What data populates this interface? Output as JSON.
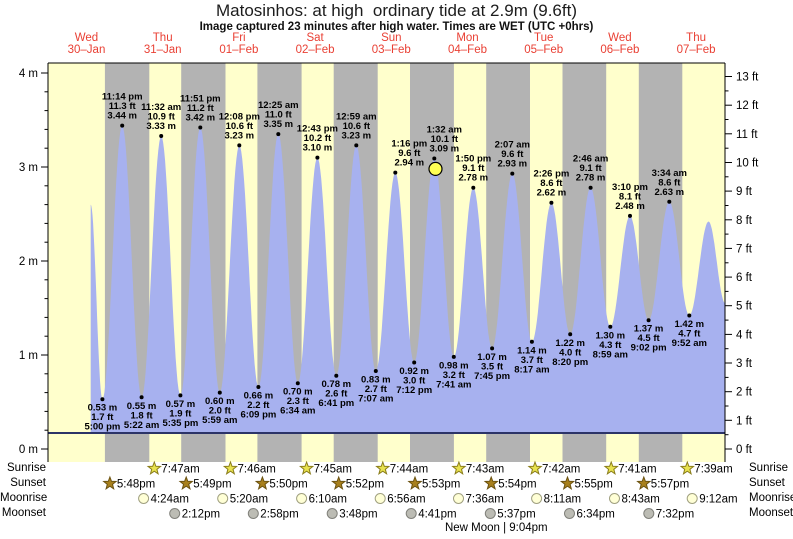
{
  "title": "Matosinhos: at high  ordinary tide at 2.9m (9.6ft)",
  "subtitle": "Image captured 23 minutes after high water. Times are WET (UTC +0hrs)",
  "colors": {
    "page_bg": "#ffffff",
    "day_band": "#ffffcc",
    "night_band": "#b3b3b3",
    "tide_fill": "#a7b1ef",
    "tide_base_line": "#2c3468",
    "axis": "#000000",
    "day_label_red": "#e93f33",
    "tide_label": "#000000",
    "current_marker_fill": "#ffff55",
    "current_marker_stroke": "#000000",
    "sunrise_star_fill": "#e8e24f",
    "sunrise_star_stroke": "#8a7d1a",
    "sunset_star_fill": "#a8801c",
    "sunset_star_stroke": "#6b5211",
    "moonrise_fill": "#ffffd6",
    "moonrise_stroke": "#a0a080",
    "moonset_fill": "#bcbcb4",
    "moonset_stroke": "#80807a"
  },
  "days": [
    {
      "name": "Wed",
      "date": "30–Jan"
    },
    {
      "name": "Thu",
      "date": "31–Jan"
    },
    {
      "name": "Fri",
      "date": "01–Feb"
    },
    {
      "name": "Sat",
      "date": "02–Feb"
    },
    {
      "name": "Sun",
      "date": "03–Feb"
    },
    {
      "name": "Mon",
      "date": "04–Feb"
    },
    {
      "name": "Tue",
      "date": "05–Feb"
    },
    {
      "name": "Wed",
      "date": "06–Feb"
    },
    {
      "name": "Thu",
      "date": "07–Feb"
    }
  ],
  "axes": {
    "left_ticks": [
      "0 m",
      "1 m",
      "2 m",
      "3 m",
      "4 m"
    ],
    "right_ticks": [
      "0 ft",
      "1 ft",
      "2 ft",
      "3 ft",
      "4 ft",
      "5 ft",
      "6 ft",
      "7 ft",
      "8 ft",
      "9 ft",
      "10 ft",
      "11 ft",
      "12 ft",
      "13 ft"
    ]
  },
  "footer": {
    "sunrise_label": "Sunrise",
    "sunset_label": "Sunset",
    "moonrise_label": "Moonrise",
    "moonset_label": "Moonset"
  },
  "chart_data": {
    "type": "area",
    "ylabel_left": "meters",
    "ylabel_right": "feet",
    "ylim_m": [
      0,
      4.1
    ],
    "ylim_ft": [
      0,
      13.5
    ],
    "x_range": "Wed 30-Jan 00:00 to Thu 07-Feb ~21:00 (9 day columns, night shaded)",
    "tide_events": [
      {
        "d": 0,
        "time": "1:20 pm",
        "m": 2.6,
        "kind": "start"
      },
      {
        "d": 0,
        "time": "5:00 pm",
        "m": 0.53,
        "kind": "low",
        "lines": [
          "0.53 m",
          "1.7 ft",
          "5:00 pm"
        ]
      },
      {
        "d": 0,
        "time": "11:14 pm",
        "m": 3.44,
        "kind": "high",
        "lines": [
          "11:14 pm",
          "11.3 ft",
          "3.44 m"
        ]
      },
      {
        "d": 1,
        "time": "5:22 am",
        "m": 0.55,
        "kind": "low",
        "lines": [
          "0.55 m",
          "1.8 ft",
          "5:22 am"
        ]
      },
      {
        "d": 1,
        "time": "11:32 am",
        "m": 3.33,
        "kind": "high",
        "lines": [
          "11:32 am",
          "10.9 ft",
          "3.33 m"
        ]
      },
      {
        "d": 1,
        "time": "5:35 pm",
        "m": 0.57,
        "kind": "low",
        "lines": [
          "0.57 m",
          "1.9 ft",
          "5:35 pm"
        ]
      },
      {
        "d": 1,
        "time": "11:51 pm",
        "m": 3.42,
        "kind": "high",
        "lines": [
          "11:51 pm",
          "11.2 ft",
          "3.42 m"
        ]
      },
      {
        "d": 2,
        "time": "5:59 am",
        "m": 0.6,
        "kind": "low",
        "lines": [
          "0.60 m",
          "2.0 ft",
          "5:59 am"
        ]
      },
      {
        "d": 2,
        "time": "12:08 pm",
        "m": 3.23,
        "kind": "high",
        "lines": [
          "12:08 pm",
          "10.6 ft",
          "3.23 m"
        ]
      },
      {
        "d": 2,
        "time": "6:09 pm",
        "m": 0.66,
        "kind": "low",
        "lines": [
          "0.66 m",
          "2.2 ft",
          "6:09 pm"
        ]
      },
      {
        "d": 3,
        "time": "12:25 am",
        "m": 3.35,
        "kind": "high",
        "lines": [
          "12:25 am",
          "11.0 ft",
          "3.35 m"
        ]
      },
      {
        "d": 3,
        "time": "6:34 am",
        "m": 0.7,
        "kind": "low",
        "lines": [
          "0.70 m",
          "2.3 ft",
          "6:34 am"
        ]
      },
      {
        "d": 3,
        "time": "12:43 pm",
        "m": 3.1,
        "kind": "high",
        "lines": [
          "12:43 pm",
          "10.2 ft",
          "3.10 m"
        ]
      },
      {
        "d": 3,
        "time": "6:41 pm",
        "m": 0.78,
        "kind": "low",
        "lines": [
          "0.78 m",
          "2.6 ft",
          "6:41 pm"
        ]
      },
      {
        "d": 4,
        "time": "12:59 am",
        "m": 3.23,
        "kind": "high",
        "lines": [
          "12:59 am",
          "10.6 ft",
          "3.23 m"
        ]
      },
      {
        "d": 4,
        "time": "7:07 am",
        "m": 0.83,
        "kind": "low",
        "lines": [
          "0.83 m",
          "2.7 ft",
          "7:07 am"
        ]
      },
      {
        "d": 4,
        "time": "1:16 pm",
        "m": 2.94,
        "kind": "high",
        "lines": [
          "1:16 pm",
          "9.6 ft",
          "2.94 m"
        ],
        "ldx": 14
      },
      {
        "d": 4,
        "time": "7:12 pm",
        "m": 0.92,
        "kind": "low",
        "lines": [
          "0.92 m",
          "3.0 ft",
          "7:12 pm"
        ]
      },
      {
        "d": 5,
        "time": "1:32 am",
        "m": 3.09,
        "kind": "high",
        "lines": [
          "1:32 am",
          "10.1 ft",
          "3.09 m"
        ],
        "ldx": 10
      },
      {
        "d": 5,
        "time": "7:41 am",
        "m": 0.98,
        "kind": "low",
        "lines": [
          "0.98 m",
          "3.2 ft",
          "7:41 am"
        ]
      },
      {
        "d": 5,
        "time": "1:50 pm",
        "m": 2.78,
        "kind": "high",
        "lines": [
          "1:50 pm",
          "9.1 ft",
          "2.78 m"
        ]
      },
      {
        "d": 5,
        "time": "7:45 pm",
        "m": 1.07,
        "kind": "low",
        "lines": [
          "1.07 m",
          "3.5 ft",
          "7:45 pm"
        ]
      },
      {
        "d": 6,
        "time": "2:07 am",
        "m": 2.93,
        "kind": "high",
        "lines": [
          "2:07 am",
          "9.6 ft",
          "2.93 m"
        ]
      },
      {
        "d": 6,
        "time": "8:17 am",
        "m": 1.14,
        "kind": "low",
        "lines": [
          "1.14 m",
          "3.7 ft",
          "8:17 am"
        ]
      },
      {
        "d": 6,
        "time": "2:26 pm",
        "m": 2.62,
        "kind": "high",
        "lines": [
          "2:26 pm",
          "8.6 ft",
          "2.62 m"
        ]
      },
      {
        "d": 6,
        "time": "8:20 pm",
        "m": 1.22,
        "kind": "low",
        "lines": [
          "1.22 m",
          "4.0 ft",
          "8:20 pm"
        ]
      },
      {
        "d": 7,
        "time": "2:46 am",
        "m": 2.78,
        "kind": "high",
        "lines": [
          "2:46 am",
          "9.1 ft",
          "2.78 m"
        ]
      },
      {
        "d": 7,
        "time": "8:59 am",
        "m": 1.3,
        "kind": "low",
        "lines": [
          "1.30 m",
          "4.3 ft",
          "8:59 am"
        ]
      },
      {
        "d": 7,
        "time": "3:10 pm",
        "m": 2.48,
        "kind": "high",
        "lines": [
          "3:10 pm",
          "8.1 ft",
          "2.48 m"
        ]
      },
      {
        "d": 7,
        "time": "9:02 pm",
        "m": 1.37,
        "kind": "low",
        "lines": [
          "1.37 m",
          "4.5 ft",
          "9:02 pm"
        ]
      },
      {
        "d": 8,
        "time": "3:34 am",
        "m": 2.63,
        "kind": "high",
        "lines": [
          "3:34 am",
          "8.6 ft",
          "2.63 m"
        ]
      },
      {
        "d": 8,
        "time": "9:52 am",
        "m": 1.42,
        "kind": "low",
        "lines": [
          "1.42 m",
          "4.7 ft",
          "9:52 am"
        ]
      },
      {
        "d": 8,
        "time": "3:55 pm",
        "m": 2.42,
        "kind": "peak-unlabeled"
      },
      {
        "d": 8,
        "time": "9:10 pm",
        "m": 1.55,
        "kind": "end"
      }
    ],
    "current_marker": {
      "d": 5,
      "time": "1:55 am",
      "m": 2.98,
      "note": "yellow circle on curve just after high water"
    },
    "sun": {
      "sunrise": [
        {
          "d": 1,
          "t": "7:47am"
        },
        {
          "d": 2,
          "t": "7:46am"
        },
        {
          "d": 3,
          "t": "7:45am"
        },
        {
          "d": 4,
          "t": "7:44am"
        },
        {
          "d": 5,
          "t": "7:43am"
        },
        {
          "d": 6,
          "t": "7:42am"
        },
        {
          "d": 7,
          "t": "7:41am"
        },
        {
          "d": 8,
          "t": "7:39am"
        }
      ],
      "sunset": [
        {
          "d": 0,
          "t": "5:48pm"
        },
        {
          "d": 1,
          "t": "5:49pm"
        },
        {
          "d": 2,
          "t": "5:50pm"
        },
        {
          "d": 3,
          "t": "5:52pm"
        },
        {
          "d": 4,
          "t": "5:53pm"
        },
        {
          "d": 5,
          "t": "5:54pm"
        },
        {
          "d": 6,
          "t": "5:55pm"
        },
        {
          "d": 7,
          "t": "5:57pm"
        }
      ]
    },
    "moon": {
      "moonrise": [
        {
          "d": 1,
          "t": "4:24am"
        },
        {
          "d": 2,
          "t": "5:20am"
        },
        {
          "d": 3,
          "t": "6:10am"
        },
        {
          "d": 4,
          "t": "6:56am"
        },
        {
          "d": 5,
          "t": "7:36am"
        },
        {
          "d": 6,
          "t": "8:11am"
        },
        {
          "d": 7,
          "t": "8:43am"
        },
        {
          "d": 8,
          "t": "9:12am"
        }
      ],
      "moonset": [
        {
          "d": 1,
          "t": "2:12pm"
        },
        {
          "d": 2,
          "t": "2:58pm"
        },
        {
          "d": 3,
          "t": "3:48pm"
        },
        {
          "d": 4,
          "t": "4:41pm"
        },
        {
          "d": 5,
          "t": "5:37pm"
        },
        {
          "d": 6,
          "t": "6:34pm"
        },
        {
          "d": 7,
          "t": "7:32pm"
        }
      ],
      "phase": {
        "d": 5,
        "t": "9:04pm",
        "label": "New Moon | 9:04pm"
      }
    }
  }
}
